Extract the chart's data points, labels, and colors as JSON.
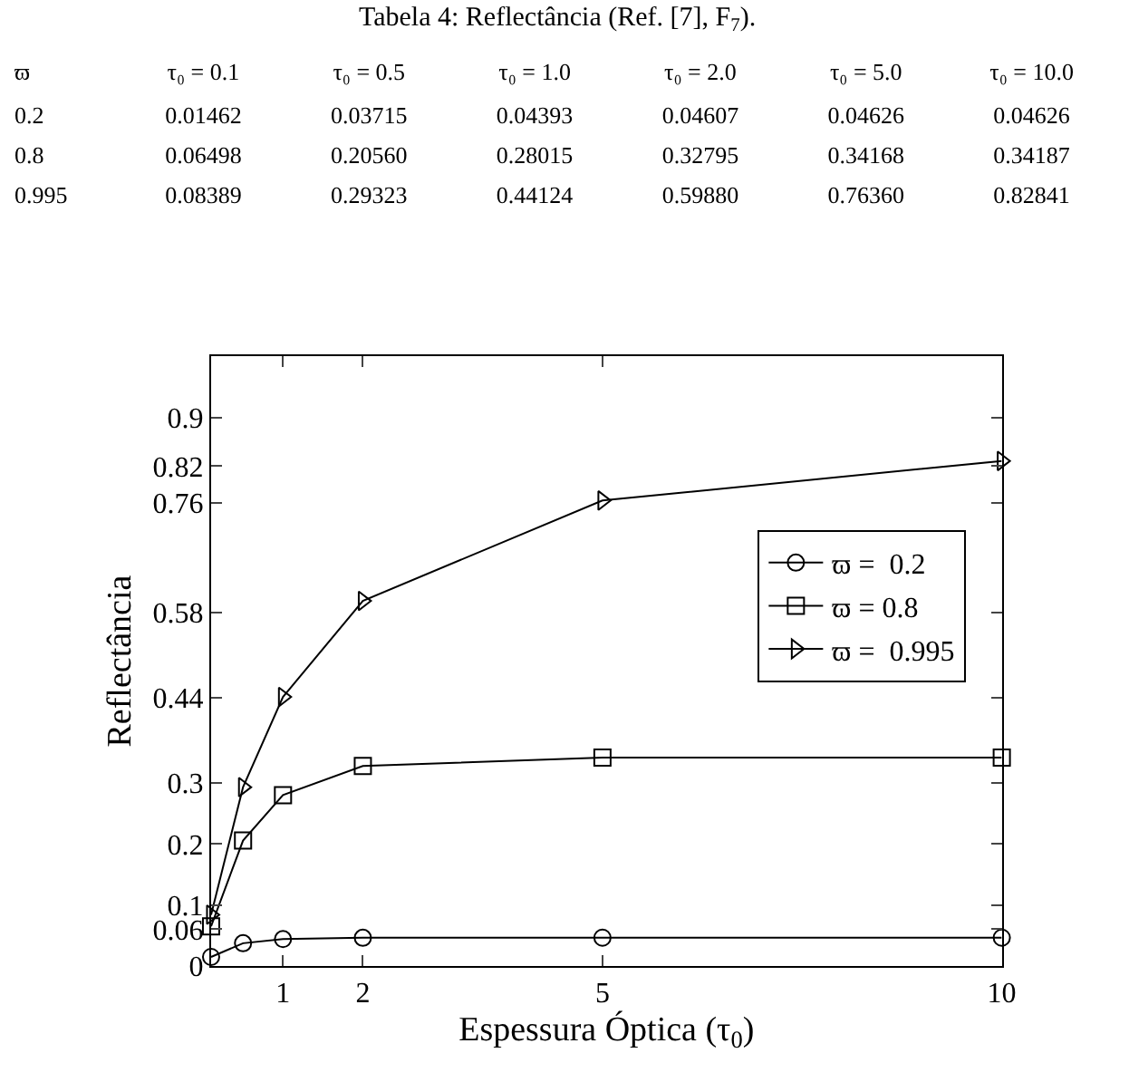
{
  "chart_data": {
    "type": "line",
    "title": "Tabela 4: Reflectância (Ref. [7], F$_{7}$).",
    "annotations": [
      "ϖ",
      "τ₀ = 0.1",
      "τ₀ = 0.5",
      "τ₀ = 1.0",
      "τ₀ = 2.0",
      "τ₀ = 5.0",
      "τ₀ = 10.0",
      "0.2",
      "0.01462",
      "0.03715",
      "0.04393",
      "0.04607",
      "0.04626",
      "0.04626",
      "0.8",
      "0.06498",
      "0.20560",
      "0.28015",
      "0.32795",
      "0.34168",
      "0.34187",
      "0.995",
      "0.08389",
      "0.29323",
      "0.44124",
      "0.59880",
      "0.76360",
      "0.82841"
    ],
    "x": [
      0.1,
      0.5,
      1,
      2,
      5,
      10
    ],
    "xlabel": "Espessura Óptica (τ$_{0}$)",
    "ylabel": "Reflectância",
    "series": [
      {
        "name": "ϖ =  0.2",
        "color": "#000000",
        "marker": "circle",
        "values": [
          0.01462,
          0.03715,
          0.04393,
          0.04607,
          0.04626,
          0.04626
        ]
      },
      {
        "name": "ϖ = 0.8",
        "color": "#000000",
        "marker": "square",
        "values": [
          0.06498,
          0.2056,
          0.28015,
          0.32795,
          0.34168,
          0.34187
        ]
      },
      {
        "name": "ϖ =  0.995",
        "color": "#000000",
        "marker": "triangle",
        "values": [
          0.08389,
          0.29323,
          0.44124,
          0.5988,
          0.7636,
          0.82841
        ]
      }
    ],
    "xlim": [
      0.1,
      10
    ],
    "xticks": [
      1,
      2,
      5,
      10
    ],
    "ylim": [
      0,
      1
    ],
    "yticks": [
      0,
      0.06,
      0.1,
      0.2,
      0.3,
      0.44,
      0.58,
      0.76,
      0.82,
      0.9
    ],
    "legend": "right",
    "line_style": "solid"
  }
}
